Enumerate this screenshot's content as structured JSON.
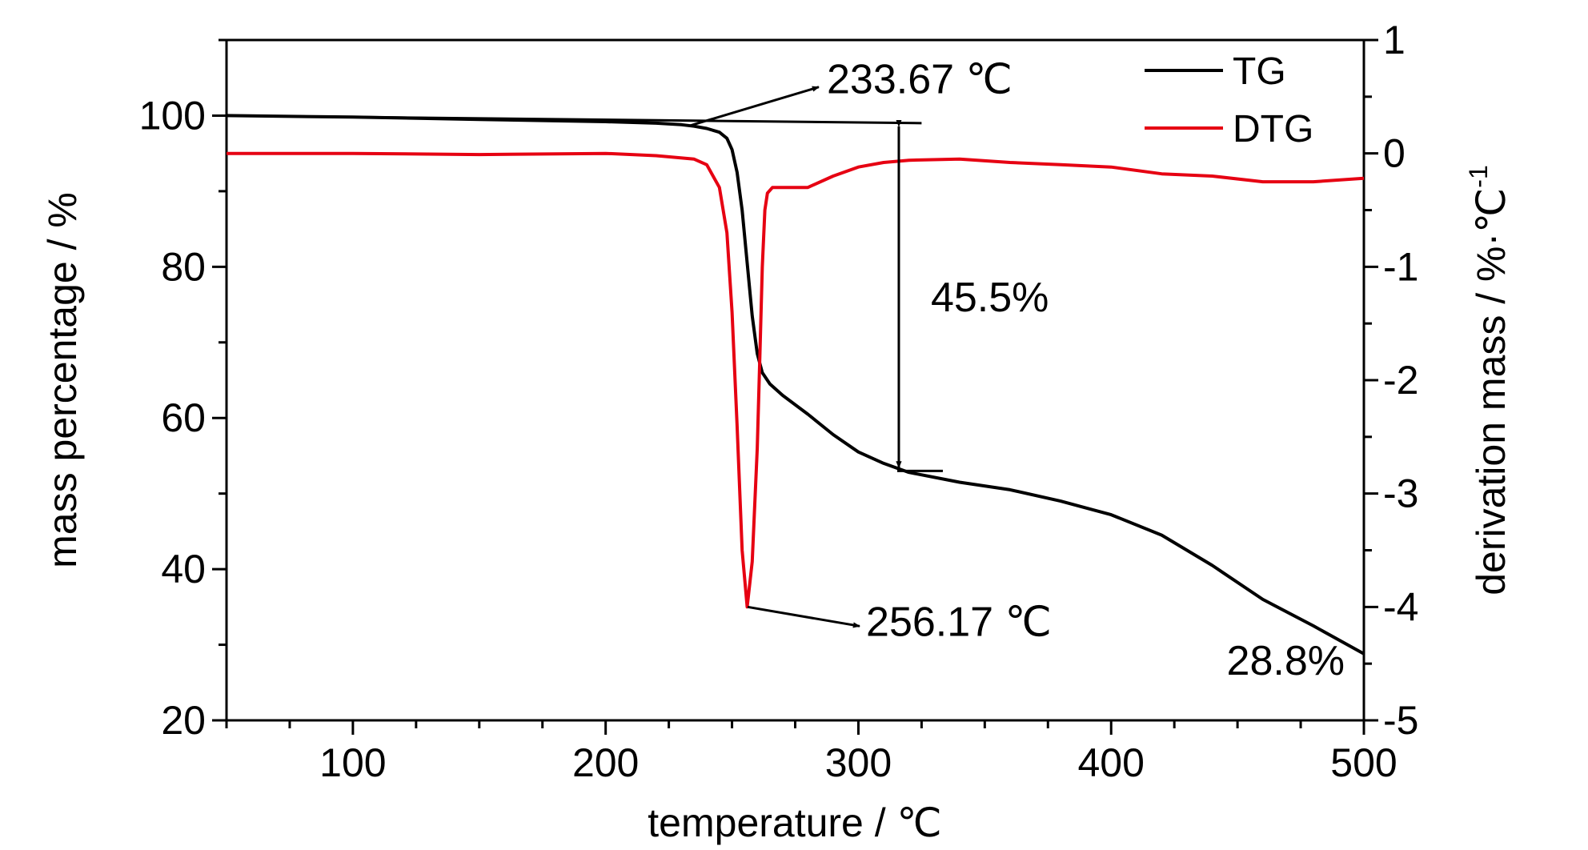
{
  "chart_data": {
    "type": "line",
    "xlabel": "temperature / ℃",
    "ylabel_left": "mass percentage / %",
    "ylabel_right": "derivation mass / %·℃",
    "ylabel_right_superscript": "-1",
    "xlim": [
      50,
      500
    ],
    "ylim_left": [
      20,
      110
    ],
    "ylim_right": [
      -5,
      1
    ],
    "x_ticks": [
      100,
      200,
      300,
      400,
      500
    ],
    "y_left_ticks": [
      20,
      40,
      60,
      80,
      100
    ],
    "y_right_ticks": [
      1,
      0,
      -1,
      -2,
      -3,
      -4,
      -5
    ],
    "legend_position": "top-right",
    "grid": false,
    "series": [
      {
        "name": "TG",
        "axis": "left",
        "color": "#000000",
        "x": [
          50,
          100,
          150,
          200,
          220,
          230,
          235,
          240,
          245,
          248,
          250,
          252,
          254,
          256,
          258,
          260,
          262,
          265,
          270,
          280,
          290,
          300,
          310,
          320,
          340,
          360,
          380,
          400,
          420,
          440,
          460,
          480,
          500
        ],
        "y": [
          100,
          99.8,
          99.5,
          99.2,
          99.0,
          98.8,
          98.6,
          98.3,
          97.8,
          97.0,
          95.5,
          92.5,
          87.5,
          80.5,
          73.5,
          68.5,
          66.0,
          64.5,
          63.0,
          60.5,
          57.8,
          55.5,
          54.0,
          52.8,
          51.5,
          50.5,
          49.0,
          47.2,
          44.5,
          40.5,
          36.0,
          32.5,
          28.8
        ]
      },
      {
        "name": "DTG",
        "axis": "right",
        "color": "#e60012",
        "x": [
          50,
          100,
          150,
          200,
          220,
          235,
          240,
          245,
          248,
          250,
          252,
          254,
          256,
          258,
          260,
          261,
          262,
          263,
          264,
          266,
          270,
          280,
          290,
          300,
          310,
          320,
          340,
          360,
          380,
          400,
          420,
          440,
          460,
          480,
          500
        ],
        "y": [
          0.0,
          0.0,
          -0.01,
          0.0,
          -0.02,
          -0.05,
          -0.1,
          -0.3,
          -0.7,
          -1.4,
          -2.4,
          -3.5,
          -4.0,
          -3.6,
          -2.6,
          -1.8,
          -1.0,
          -0.5,
          -0.35,
          -0.3,
          -0.3,
          -0.3,
          -0.2,
          -0.12,
          -0.08,
          -0.06,
          -0.05,
          -0.08,
          -0.1,
          -0.12,
          -0.18,
          -0.2,
          -0.25,
          -0.25,
          -0.22
        ]
      }
    ],
    "annotations": [
      {
        "text": "233.67 ℃",
        "x": 233.67,
        "y": 98.7,
        "axis": "left"
      },
      {
        "text": "256.17 ℃",
        "x": 256.17,
        "y": -4.0,
        "axis": "right"
      },
      {
        "text": "45.5%",
        "x_from": 316,
        "y_top": 99.0,
        "y_bottom": 53.0,
        "axis": "left"
      },
      {
        "text": "28.8%",
        "x": 500,
        "y": 28.8,
        "axis": "left"
      }
    ]
  }
}
